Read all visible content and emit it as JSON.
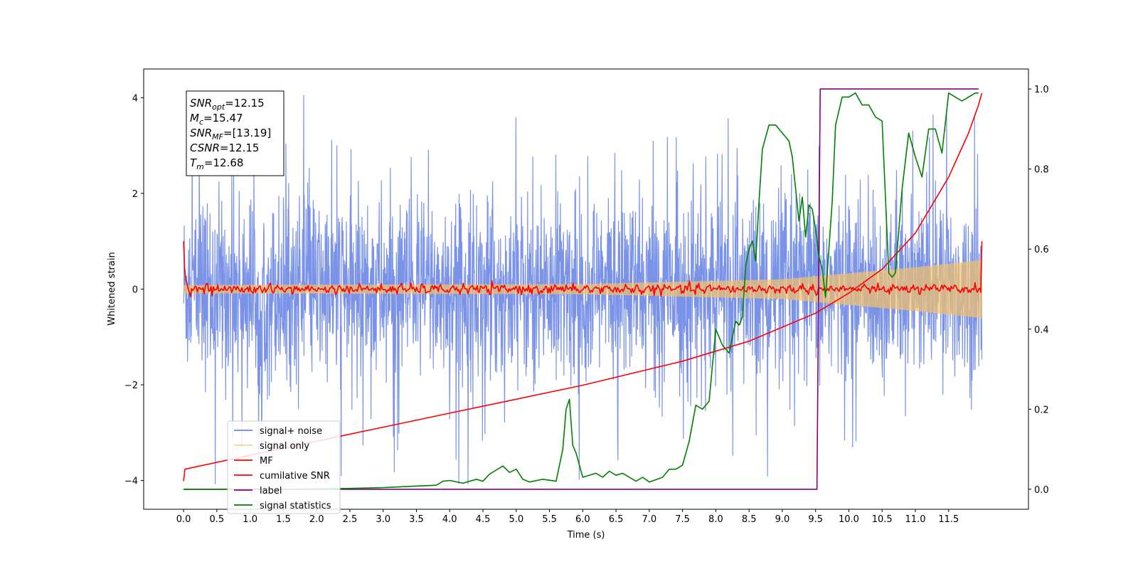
{
  "chart_data": {
    "type": "line",
    "xlabel": "Time (s)",
    "ylabel": "Whitened strain",
    "xlim": [
      -0.6,
      12.7
    ],
    "ylim": [
      -4.6,
      4.6
    ],
    "y2lim": [
      -0.05,
      1.05
    ],
    "x_ticks": [
      "0.0",
      "0.5",
      "1.0",
      "1.5",
      "2.0",
      "2.5",
      "3.0",
      "3.5",
      "4.0",
      "4.5",
      "5.0",
      "5.5",
      "6.0",
      "6.5",
      "7.0",
      "7.5",
      "8.0",
      "8.5",
      "9.0",
      "9.5",
      "10.0",
      "10.5",
      "11.0",
      "11.5"
    ],
    "y_ticks": [
      "4",
      "2",
      "0",
      "−2",
      "−4"
    ],
    "y2_ticks": [
      "1.0",
      "0.8",
      "0.6",
      "0.4",
      "0.2",
      "0.0"
    ],
    "annotation": [
      {
        "sym": "SNR",
        "sub": "opt",
        "val": "=12.15"
      },
      {
        "sym": "M",
        "sub": "c",
        "val": "=15.47"
      },
      {
        "sym": "SNR",
        "sub": "MF",
        "val": "=[13.19]"
      },
      {
        "sym": "CSNR",
        "sub": "",
        "val": "=12.15"
      },
      {
        "sym": "T",
        "sub": "m",
        "val": "=12.68"
      }
    ],
    "legend_position": "lower-left",
    "series": [
      {
        "name": "signal+ noise",
        "color": "#6b87e6",
        "axis": "left",
        "kind": "noise",
        "x_range": [
          0,
          12
        ],
        "center": 0.0,
        "spread": 2.3,
        "peak": 4.2
      },
      {
        "name": "signal only",
        "color": "#f5c16a",
        "axis": "left",
        "kind": "chirp",
        "x_range": [
          0,
          12
        ],
        "envelope": [
          [
            0,
            0.08
          ],
          [
            6,
            0.1
          ],
          [
            9,
            0.2
          ],
          [
            11,
            0.45
          ],
          [
            12,
            0.6
          ]
        ]
      },
      {
        "name": "MF",
        "color": "#ff0000",
        "axis": "left",
        "kind": "mf",
        "x_range": [
          0,
          12
        ],
        "start": 1.0,
        "end": 1.0
      },
      {
        "name": "cumilative SNR",
        "color": "#ff0000",
        "axis": "right",
        "kind": "line",
        "x": [
          0,
          0.02,
          1,
          2,
          3,
          4,
          5,
          6,
          7,
          7.5,
          8,
          8.5,
          9,
          9.5,
          10,
          10.5,
          11,
          11.5,
          11.8,
          11.95,
          12
        ],
        "y": [
          0.02,
          0.05,
          0.085,
          0.12,
          0.155,
          0.19,
          0.225,
          0.26,
          0.3,
          0.32,
          0.345,
          0.37,
          0.405,
          0.44,
          0.49,
          0.55,
          0.64,
          0.78,
          0.89,
          0.96,
          0.99
        ]
      },
      {
        "name": "label",
        "color": "#800080",
        "axis": "right",
        "kind": "line",
        "x": [
          0,
          9.52,
          9.57,
          11.95
        ],
        "y": [
          0,
          0,
          1,
          1
        ]
      },
      {
        "name": "signal statistics",
        "color": "#008000",
        "axis": "right",
        "kind": "line",
        "x": [
          0,
          0.5,
          1,
          1.5,
          2,
          2.5,
          3,
          3.5,
          3.8,
          3.9,
          4.0,
          4.2,
          4.4,
          4.5,
          4.6,
          4.8,
          4.9,
          5.0,
          5.1,
          5.2,
          5.4,
          5.6,
          5.65,
          5.7,
          5.75,
          5.8,
          5.85,
          5.9,
          6.0,
          6.2,
          6.3,
          6.4,
          6.5,
          6.6,
          6.8,
          6.9,
          7.0,
          7.2,
          7.3,
          7.4,
          7.5,
          7.6,
          7.7,
          7.8,
          7.9,
          8.0,
          8.1,
          8.2,
          8.3,
          8.35,
          8.4,
          8.45,
          8.5,
          8.55,
          8.6,
          8.65,
          8.7,
          8.8,
          8.9,
          9.0,
          9.1,
          9.15,
          9.25,
          9.3,
          9.35,
          9.4,
          9.45,
          9.5,
          9.55,
          9.6,
          9.65,
          9.75,
          9.8,
          9.9,
          10.0,
          10.1,
          10.2,
          10.3,
          10.4,
          10.5,
          10.6,
          10.65,
          10.7,
          10.8,
          10.9,
          11.0,
          11.1,
          11.2,
          11.3,
          11.4,
          11.5,
          11.6,
          11.7,
          11.8,
          11.9,
          11.95
        ],
        "y": [
          0.0,
          0.0,
          0.001,
          0.0,
          0.001,
          0.002,
          0.004,
          0.008,
          0.01,
          0.02,
          0.022,
          0.015,
          0.025,
          0.02,
          0.038,
          0.058,
          0.042,
          0.05,
          0.025,
          0.018,
          0.025,
          0.02,
          0.06,
          0.1,
          0.2,
          0.225,
          0.11,
          0.09,
          0.03,
          0.04,
          0.03,
          0.045,
          0.035,
          0.04,
          0.02,
          0.03,
          0.018,
          0.03,
          0.05,
          0.05,
          0.06,
          0.12,
          0.21,
          0.2,
          0.22,
          0.4,
          0.36,
          0.34,
          0.42,
          0.41,
          0.43,
          0.56,
          0.6,
          0.62,
          0.57,
          0.72,
          0.85,
          0.91,
          0.91,
          0.89,
          0.87,
          0.83,
          0.67,
          0.73,
          0.63,
          0.71,
          0.7,
          0.65,
          0.58,
          0.55,
          0.48,
          0.72,
          0.91,
          0.98,
          0.98,
          0.99,
          0.96,
          0.96,
          0.93,
          0.92,
          0.54,
          0.53,
          0.54,
          0.75,
          0.89,
          0.83,
          0.78,
          0.9,
          0.9,
          0.84,
          0.99,
          0.98,
          0.97,
          0.98,
          0.99,
          0.99
        ]
      }
    ]
  }
}
